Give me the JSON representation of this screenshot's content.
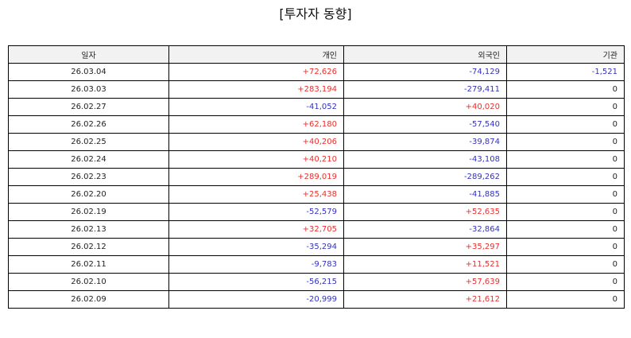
{
  "title": "[투자자 동향]",
  "colors": {
    "positive": "#e8312e",
    "negative": "#3333bb",
    "zero": "#222222",
    "header_bg": "#f2f2f2"
  },
  "table": {
    "headers": {
      "date": "일자",
      "individual": "개인",
      "foreign": "외국인",
      "institution": "기관"
    },
    "rows": [
      {
        "date": "26.03.04",
        "individual": "+72,626",
        "foreign": "-74,129",
        "institution": "-1,521"
      },
      {
        "date": "26.03.03",
        "individual": "+283,194",
        "foreign": "-279,411",
        "institution": "0"
      },
      {
        "date": "26.02.27",
        "individual": "-41,052",
        "foreign": "+40,020",
        "institution": "0"
      },
      {
        "date": "26.02.26",
        "individual": "+62,180",
        "foreign": "-57,540",
        "institution": "0"
      },
      {
        "date": "26.02.25",
        "individual": "+40,206",
        "foreign": "-39,874",
        "institution": "0"
      },
      {
        "date": "26.02.24",
        "individual": "+40,210",
        "foreign": "-43,108",
        "institution": "0"
      },
      {
        "date": "26.02.23",
        "individual": "+289,019",
        "foreign": "-289,262",
        "institution": "0"
      },
      {
        "date": "26.02.20",
        "individual": "+25,438",
        "foreign": "-41,885",
        "institution": "0"
      },
      {
        "date": "26.02.19",
        "individual": "-52,579",
        "foreign": "+52,635",
        "institution": "0"
      },
      {
        "date": "26.02.13",
        "individual": "+32,705",
        "foreign": "-32,864",
        "institution": "0"
      },
      {
        "date": "26.02.12",
        "individual": "-35,294",
        "foreign": "+35,297",
        "institution": "0"
      },
      {
        "date": "26.02.11",
        "individual": "-9,783",
        "foreign": "+11,521",
        "institution": "0"
      },
      {
        "date": "26.02.10",
        "individual": "-56,215",
        "foreign": "+57,639",
        "institution": "0"
      },
      {
        "date": "26.02.09",
        "individual": "-20,999",
        "foreign": "+21,612",
        "institution": "0"
      }
    ]
  }
}
